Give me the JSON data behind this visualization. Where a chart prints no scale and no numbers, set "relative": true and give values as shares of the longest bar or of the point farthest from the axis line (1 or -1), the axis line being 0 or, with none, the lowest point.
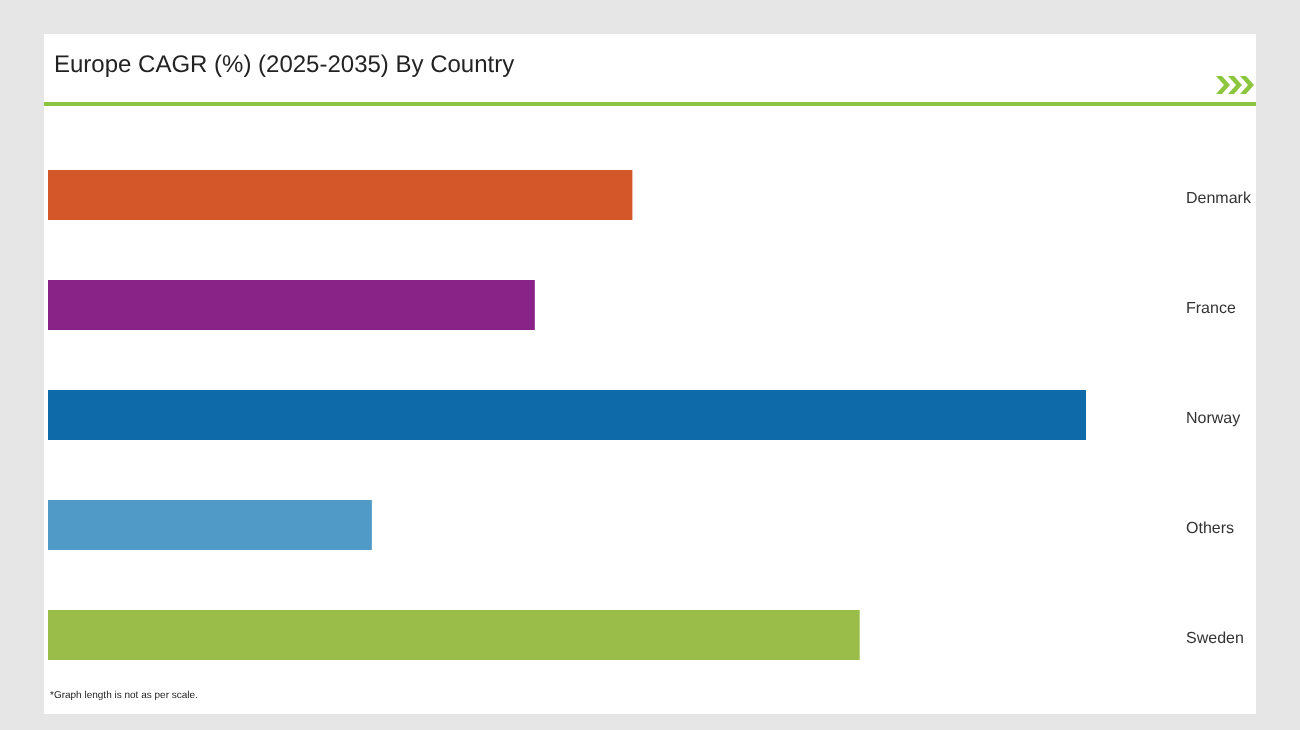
{
  "chart_data": {
    "type": "bar",
    "orientation": "horizontal",
    "relative": true,
    "title": "Europe CAGR (%) (2025-2035) By Country",
    "categories": [
      "Denmark",
      "France",
      "Norway",
      "Others",
      "Sweden"
    ],
    "values": [
      0.563,
      0.469,
      1,
      0.312,
      0.782
    ],
    "colors": [
      "#d4572a",
      "#8a2387",
      "#0e6aa8",
      "#4f9ac6",
      "#99bd48"
    ],
    "annotations": [
      "*Graph length is not as per scale."
    ]
  }
}
